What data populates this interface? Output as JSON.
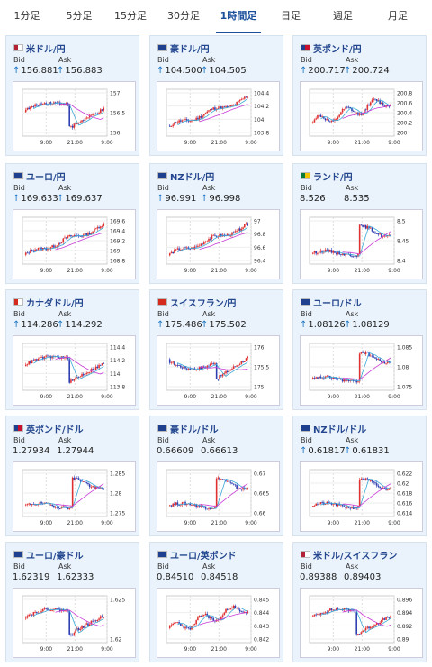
{
  "tabs": [
    {
      "label": "1分足",
      "active": false
    },
    {
      "label": "5分足",
      "active": false
    },
    {
      "label": "15分足",
      "active": false
    },
    {
      "label": "30分足",
      "active": false
    },
    {
      "label": "1時間足",
      "active": true
    },
    {
      "label": "日足",
      "active": false
    },
    {
      "label": "週足",
      "active": false
    },
    {
      "label": "月足",
      "active": false
    }
  ],
  "labels": {
    "bid": "Bid",
    "ask": "Ask",
    "up_arrow": "↑"
  },
  "x_ticks": [
    "9:00",
    "21:00",
    "9:00"
  ],
  "colors": {
    "up": "#e03131",
    "down": "#2f3fb3",
    "ma_short": "#3aa9d6",
    "ma_long": "#c83ad6",
    "tab_active": "#1a4f9c"
  },
  "pairs": [
    {
      "name": "米ドル/円",
      "flag": "US",
      "bid": "156.881",
      "ask": "156.883",
      "bid_up": true,
      "ask_up": true,
      "y_ticks": [
        "157",
        "156.5",
        "156"
      ],
      "pattern": "crash-recover"
    },
    {
      "name": "豪ドル/円",
      "flag": "AU",
      "bid": "104.500",
      "ask": "104.505",
      "bid_up": true,
      "ask_up": true,
      "y_ticks": [
        "104.4",
        "104.2",
        "104",
        "103.8"
      ],
      "pattern": "steady-up"
    },
    {
      "name": "英ポンド/円",
      "flag": "GB",
      "bid": "200.717",
      "ask": "200.724",
      "bid_up": true,
      "ask_up": true,
      "y_ticks": [
        "200.8",
        "200.6",
        "200.4",
        "200.2",
        "200"
      ],
      "pattern": "volatile-up"
    },
    {
      "name": "ユーロ/円",
      "flag": "EU",
      "bid": "169.633",
      "ask": "169.637",
      "bid_up": true,
      "ask_up": true,
      "y_ticks": [
        "169.6",
        "169.4",
        "169.2",
        "169",
        "168.8"
      ],
      "pattern": "steady-up"
    },
    {
      "name": "NZドル/円",
      "flag": "NZ",
      "bid": "96.991",
      "ask": "96.998",
      "bid_up": true,
      "ask_up": true,
      "y_ticks": [
        "97",
        "96.8",
        "96.6",
        "96.4"
      ],
      "pattern": "steady-up"
    },
    {
      "name": "ランド/円",
      "flag": "ZA",
      "bid": "8.526",
      "ask": "8.535",
      "bid_up": false,
      "ask_up": false,
      "y_ticks": [
        "8.5",
        "8.45",
        "8.4"
      ],
      "pattern": "late-jump"
    },
    {
      "name": "カナダドル/円",
      "flag": "CA",
      "bid": "114.286",
      "ask": "114.292",
      "bid_up": true,
      "ask_up": true,
      "y_ticks": [
        "114.4",
        "114.2",
        "114",
        "113.8"
      ],
      "pattern": "crash-recover"
    },
    {
      "name": "スイスフラン/円",
      "flag": "CH",
      "bid": "175.486",
      "ask": "175.502",
      "bid_up": true,
      "ask_up": true,
      "y_ticks": [
        "176",
        "175.5",
        "175"
      ],
      "pattern": "dip-recover"
    },
    {
      "name": "ユーロ/ドル",
      "flag": "EU",
      "bid": "1.08126",
      "ask": "1.08129",
      "bid_up": true,
      "ask_up": true,
      "y_ticks": [
        "1.085",
        "1.08",
        "1.075"
      ],
      "pattern": "late-jump"
    },
    {
      "name": "英ポンド/ドル",
      "flag": "GB",
      "bid": "1.27934",
      "ask": "1.27944",
      "bid_up": false,
      "ask_up": false,
      "y_ticks": [
        "1.285",
        "1.28",
        "1.275"
      ],
      "pattern": "late-jump"
    },
    {
      "name": "豪ドル/ドル",
      "flag": "AU",
      "bid": "0.66609",
      "ask": "0.66613",
      "bid_up": false,
      "ask_up": false,
      "y_ticks": [
        "0.67",
        "0.665",
        "0.66"
      ],
      "pattern": "late-jump"
    },
    {
      "name": "NZドル/ドル",
      "flag": "NZ",
      "bid": "0.61817",
      "ask": "0.61831",
      "bid_up": true,
      "ask_up": true,
      "y_ticks": [
        "0.622",
        "0.62",
        "0.618",
        "0.616",
        "0.614"
      ],
      "pattern": "late-jump"
    },
    {
      "name": "ユーロ/豪ドル",
      "flag": "EU",
      "bid": "1.62319",
      "ask": "1.62333",
      "bid_up": false,
      "ask_up": false,
      "y_ticks": [
        "1.625",
        "1.62"
      ],
      "pattern": "crash-recover"
    },
    {
      "name": "ユーロ/英ポンド",
      "flag": "EU",
      "bid": "0.84510",
      "ask": "0.84518",
      "bid_up": false,
      "ask_up": false,
      "y_ticks": [
        "0.845",
        "0.844",
        "0.843",
        "0.842"
      ],
      "pattern": "volatile-up"
    },
    {
      "name": "米ドル/スイスフラン",
      "flag": "US",
      "bid": "0.89388",
      "ask": "0.89403",
      "bid_up": false,
      "ask_up": false,
      "y_ticks": [
        "0.896",
        "0.894",
        "0.892",
        "0.89"
      ],
      "pattern": "crash-recover"
    }
  ]
}
